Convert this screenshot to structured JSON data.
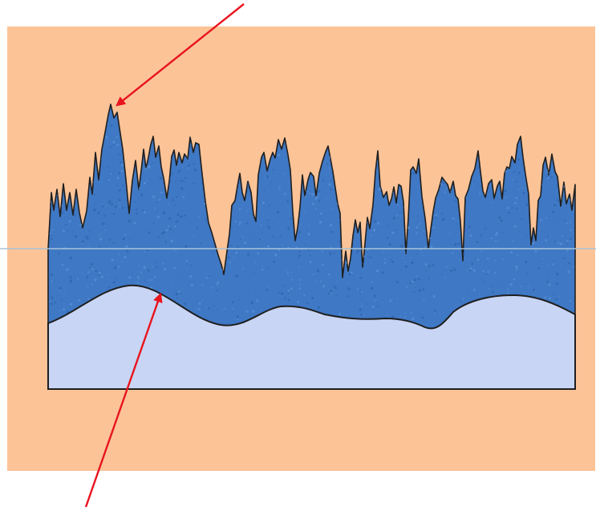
{
  "figure": {
    "colors": {
      "page_background": "#ffffff",
      "panel_background": "#fcc397",
      "upper_layer_fill": "#3f78c4",
      "lower_layer_fill": "#c9d5f4",
      "outline": "#1f1f1f",
      "reference_line": "#a9c4d6",
      "arrow": "#e8141e"
    },
    "layers": [
      {
        "name": "upper-layer",
        "texture": "speckled"
      },
      {
        "name": "lower-layer",
        "texture": "flat"
      }
    ],
    "arrows": [
      {
        "points_to": "highest-peak"
      },
      {
        "points_to": "lower-layer-boundary"
      }
    ],
    "reference_line": {
      "style": "thin horizontal"
    }
  }
}
